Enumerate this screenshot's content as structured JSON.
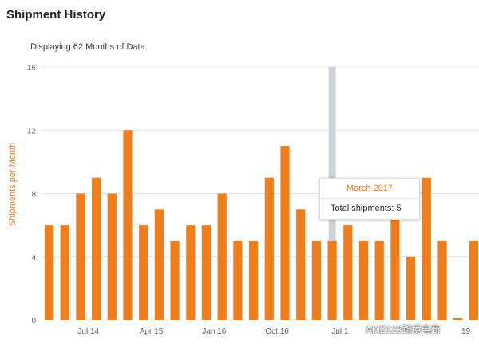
{
  "page": {
    "title": "Shipment History",
    "subtitle": "Displaying 62 Months of Data"
  },
  "tooltip": {
    "header": "March 2017",
    "body": "Total shipments: 5"
  },
  "watermark": {
    "text": "AMZ123跨境电商"
  },
  "colors": {
    "bar": "#f07c1a",
    "ylabel": "#f07c1a",
    "grid": "#e4e4e4",
    "highlight": "#cdd3d8",
    "tick": "#666666"
  },
  "chart_data": {
    "type": "bar",
    "title": "",
    "xlabel": "",
    "ylabel": "Shipments per Month",
    "ylim": [
      0,
      16
    ],
    "yticks": [
      0,
      4,
      8,
      12,
      16
    ],
    "grid": true,
    "highlighted_index": 18,
    "values": [
      6,
      6,
      8,
      9,
      8,
      12,
      6,
      7,
      5,
      6,
      6,
      8,
      5,
      5,
      9,
      11,
      7,
      5,
      5,
      6,
      5,
      5,
      7,
      4,
      9,
      5,
      0.1,
      5
    ],
    "x_tick_labels": [
      {
        "index": 2.5,
        "label": "Jul 14"
      },
      {
        "index": 6.5,
        "label": "Apr 15"
      },
      {
        "index": 10.5,
        "label": "Jan 16"
      },
      {
        "index": 14.5,
        "label": "Oct 16"
      },
      {
        "index": 18.5,
        "label": "Jul 1"
      },
      {
        "index": 26.5,
        "label": "19"
      }
    ]
  }
}
